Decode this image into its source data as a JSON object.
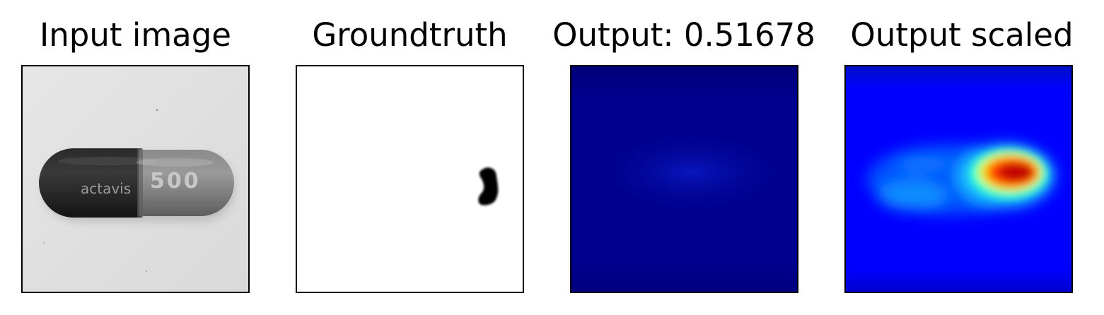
{
  "panels": [
    {
      "title": "Input image",
      "content": "grayscale capsule photo"
    },
    {
      "title": "Groundtruth",
      "content": "defect mask"
    },
    {
      "title": "Output: 0.51678",
      "content": "heatmap"
    },
    {
      "title": "Output scaled",
      "content": "scaled heatmap"
    }
  ],
  "capsule": {
    "brand_text": "actavis",
    "dose_text": "500"
  },
  "colors": {
    "background": "#ffffff",
    "frame": "#000000",
    "raw_output_base": "#00008f",
    "jet_blue": "#0000ff",
    "jet_red": "#c00000"
  }
}
